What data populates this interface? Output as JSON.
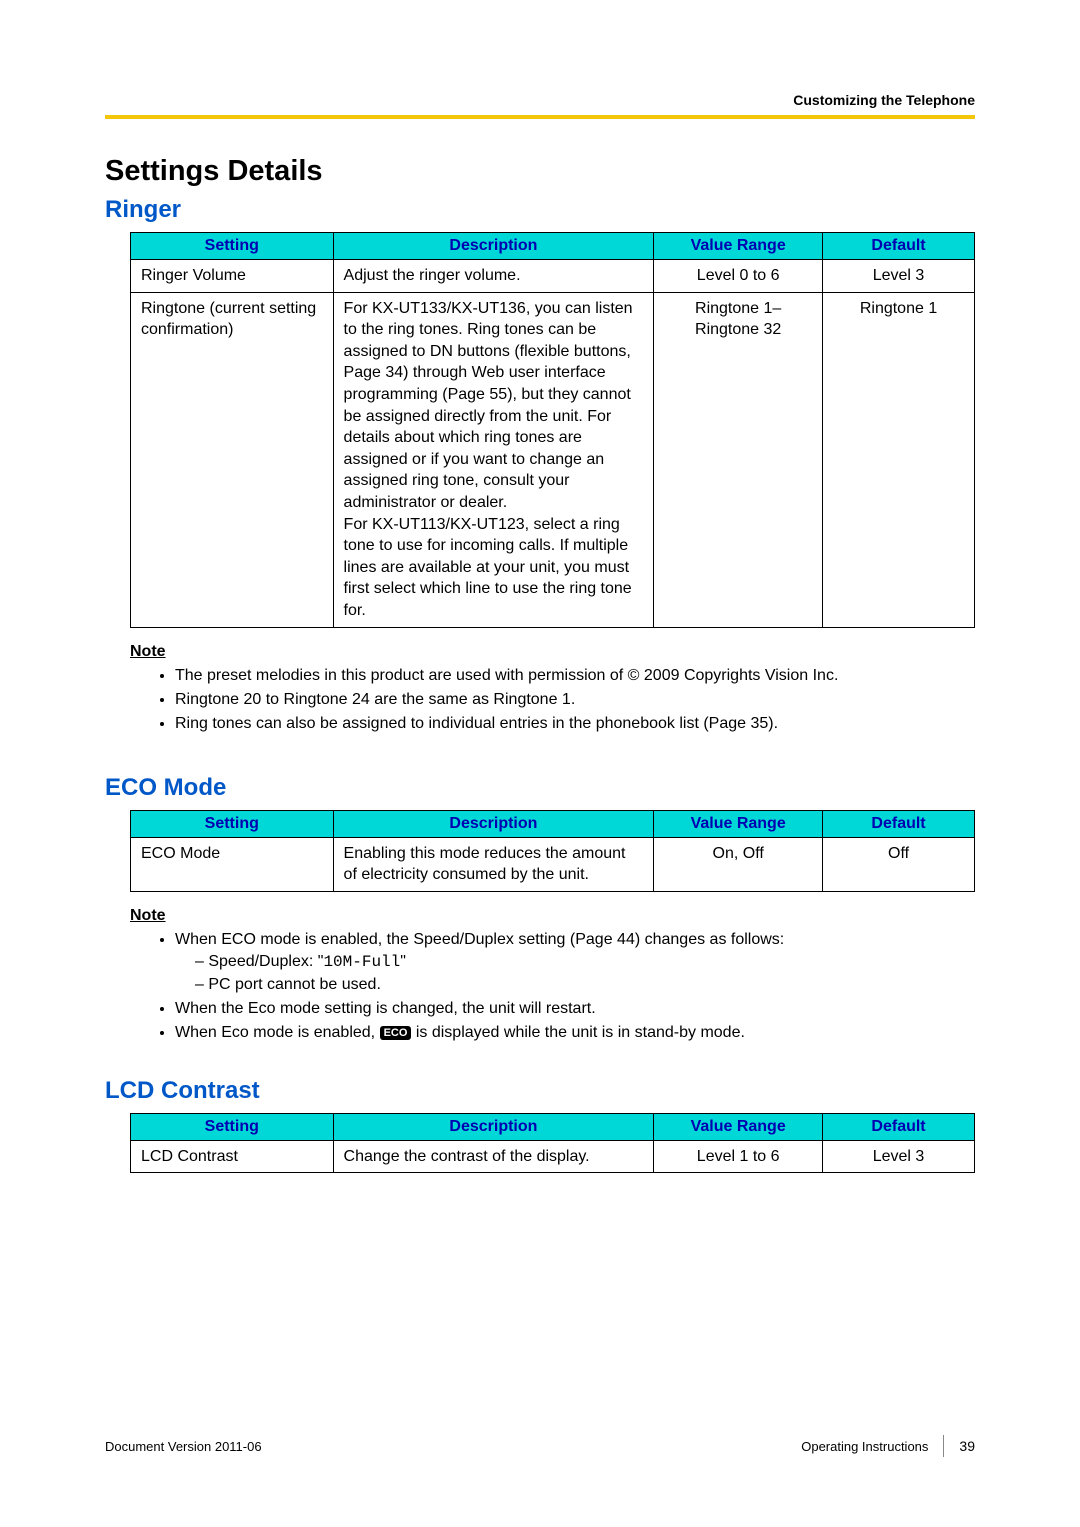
{
  "header": {
    "breadcrumb": "Customizing the Telephone"
  },
  "page_title": "Settings Details",
  "columns": {
    "setting": "Setting",
    "description": "Description",
    "range": "Value Range",
    "default": "Default"
  },
  "colors": {
    "th_bg": "#00d8d8",
    "th_text": "#0000b0",
    "section_heading": "#0057c7",
    "rule": "#f4c60b"
  },
  "ringer": {
    "heading": "Ringer",
    "rows": [
      {
        "setting": "Ringer Volume",
        "description": "Adjust the ringer volume.",
        "range": "Level 0 to 6",
        "default": "Level 3"
      },
      {
        "setting": "Ringtone (current setting confirmation)",
        "description": "For KX-UT133/KX-UT136, you can listen to the ring tones. Ring tones can be assigned to DN buttons (flexible buttons, Page 34) through Web user interface programming (Page 55), but they cannot be assigned directly from the unit. For details about which ring tones are assigned or if you want to change an assigned ring tone, consult your administrator or dealer.\nFor KX-UT113/KX-UT123, select a ring tone to use for incoming calls. If multiple lines are available at your unit, you must first select which line to use the ring tone for.",
        "range": "Ringtone 1–\nRingtone 32",
        "default": "Ringtone 1"
      }
    ],
    "note_label": "Note",
    "notes": [
      "The preset melodies in this product are used with permission of © 2009 Copyrights Vision Inc.",
      "Ringtone 20 to Ringtone 24 are the same as Ringtone 1.",
      "Ring tones can also be assigned to individual entries in the phonebook list (Page 35)."
    ]
  },
  "eco": {
    "heading": "ECO Mode",
    "rows": [
      {
        "setting": "ECO Mode",
        "description": "Enabling this mode reduces the amount of electricity consumed by the unit.",
        "range": "On, Off",
        "default": "Off"
      }
    ],
    "note_label": "Note",
    "notes": {
      "n1": "When ECO mode is enabled, the Speed/Duplex setting (Page 44) changes as follows:",
      "n1a_prefix": "Speed/Duplex: \"",
      "n1a_mono": "10M-Full",
      "n1a_suffix": "\"",
      "n1b": "PC port cannot be used.",
      "n2": "When the Eco mode setting is changed, the unit will restart.",
      "n3_prefix": "When Eco mode is enabled, ",
      "n3_icon": "ECO",
      "n3_suffix": " is displayed while the unit is in stand-by mode."
    }
  },
  "lcd": {
    "heading": "LCD Contrast",
    "rows": [
      {
        "setting": "LCD Contrast",
        "description": "Change the contrast of the display.",
        "range": "Level 1 to 6",
        "default": "Level 3"
      }
    ]
  },
  "footer": {
    "left": "Document Version  2011-06",
    "right_label": "Operating Instructions",
    "page": "39"
  }
}
